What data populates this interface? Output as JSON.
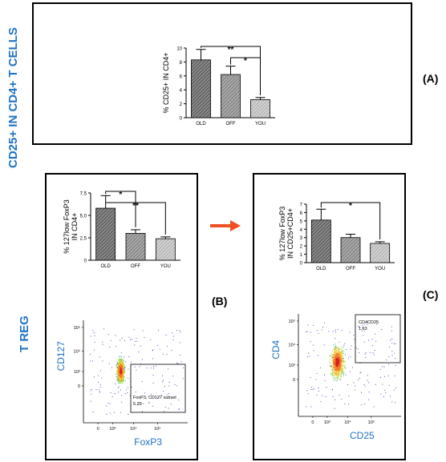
{
  "side_labels": {
    "a": "CD25+ IN CD4+ T CELLS",
    "b": "T REG"
  },
  "panel_letters": {
    "a": "(A)",
    "b": "(B)",
    "c": "(C)"
  },
  "colors": {
    "accent_blue": "#1f73c4",
    "arrow": "#f04e23",
    "bar_dark": "#6f6f6f",
    "bar_mid": "#9a9a9a",
    "bar_light": "#c4c4c4"
  },
  "arrow_icon": "right-arrow-icon",
  "chart_data": [
    {
      "type": "bar",
      "panel": "A",
      "categories": [
        "OLD",
        "OFF",
        "YOU"
      ],
      "values": [
        8.3,
        6.2,
        2.6
      ],
      "errors": [
        1.5,
        1.2,
        0.3
      ],
      "ylabel": "% CD25+ IN CD4+",
      "ylim": [
        0,
        10
      ],
      "yticks": [
        "0",
        "2",
        "4",
        "6",
        "8",
        "10"
      ],
      "significance": [
        {
          "from": "OLD",
          "to": "YOU",
          "label": "**"
        },
        {
          "from": "OFF",
          "to": "YOU",
          "label": "*"
        }
      ]
    },
    {
      "type": "bar",
      "panel": "B",
      "categories": [
        "OLD",
        "OFF",
        "YOU"
      ],
      "values": [
        5.8,
        3.0,
        2.4
      ],
      "errors": [
        1.4,
        0.4,
        0.2
      ],
      "ylabel": "% 127low FoxP3 IN CD4+",
      "ylim": [
        0,
        7.5
      ],
      "yticks": [
        "0",
        "2.5",
        "5.0",
        "7.5"
      ],
      "significance": [
        {
          "from": "OLD",
          "to": "OFF",
          "label": "*"
        },
        {
          "from": "OLD",
          "to": "YOU",
          "label": "**"
        }
      ]
    },
    {
      "type": "bar",
      "panel": "C",
      "categories": [
        "OLD",
        "OFF",
        "YOU"
      ],
      "values": [
        5.1,
        3.0,
        2.3
      ],
      "errors": [
        1.3,
        0.4,
        0.2
      ],
      "ylabel": "% 127low FoxP3 IN CD25+CD4+",
      "ylim": [
        0,
        7
      ],
      "yticks": [
        "0",
        "1",
        "2",
        "3",
        "4",
        "5",
        "6",
        "7"
      ],
      "significance": [
        {
          "from": "OLD",
          "to": "YOU",
          "label": "*"
        }
      ]
    },
    {
      "type": "scatter",
      "panel": "B-flow",
      "xlabel": "FoxP3",
      "ylabel": "CD127",
      "xticks": [
        "0",
        "10³",
        "10⁴",
        "10⁵"
      ],
      "yticks": [
        "0",
        "10³",
        "10⁴",
        "10⁵"
      ],
      "gate_label": "FoxP3, CD127 subset",
      "gate_value": "5.29"
    },
    {
      "type": "scatter",
      "panel": "C-flow",
      "xlabel": "CD25",
      "ylabel": "CD4",
      "xticks": [
        "0",
        "10³",
        "10⁴",
        "10⁵"
      ],
      "yticks": [
        "0",
        "10³",
        "10⁴",
        "10⁵"
      ],
      "gate_label": "CD4CD25",
      "gate_value": "1.63"
    }
  ]
}
